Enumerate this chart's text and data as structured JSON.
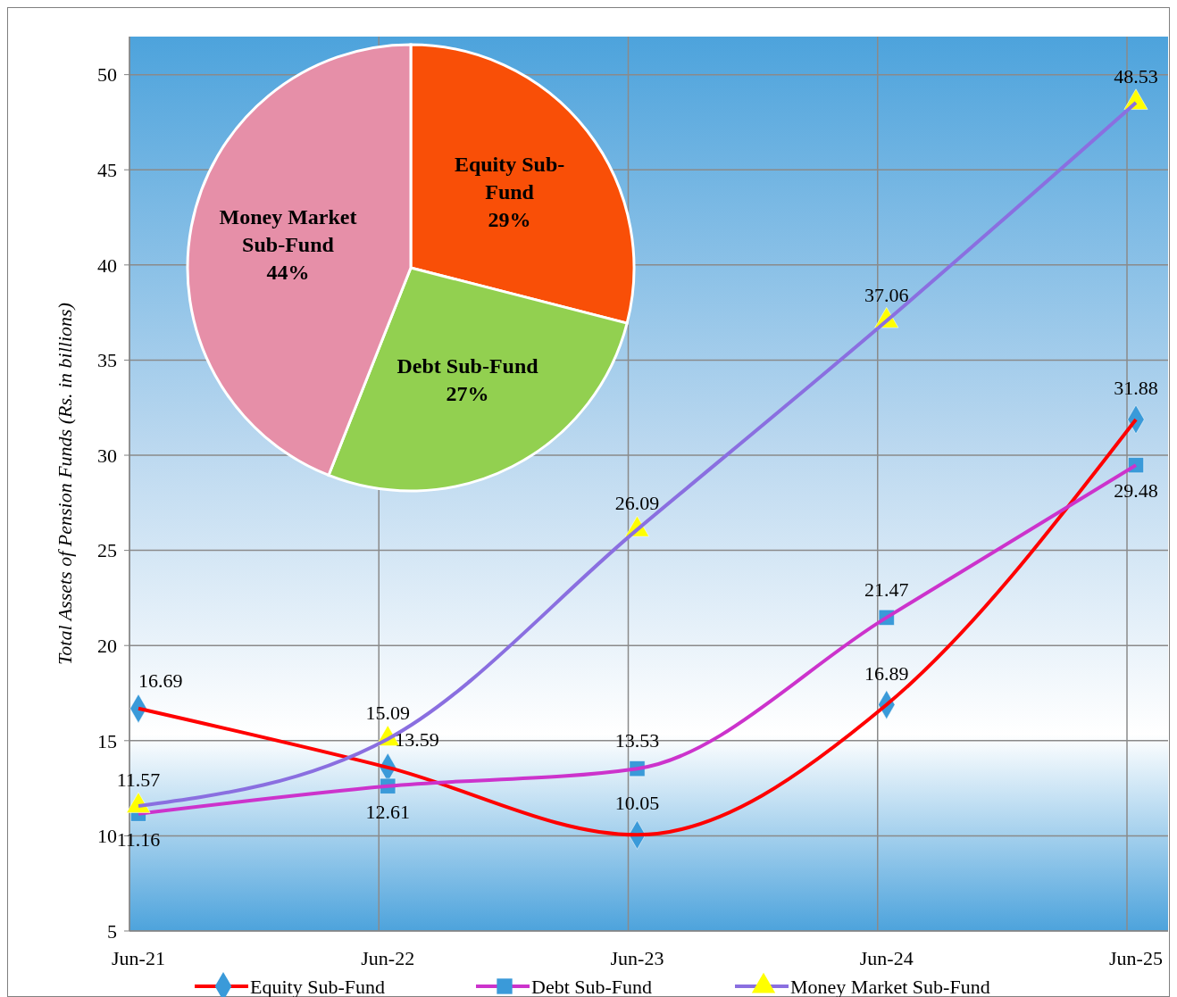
{
  "chart_data": [
    {
      "type": "line",
      "ylabel": "Total Assets  of Pension Funds (Rs. in billions)",
      "categories": [
        "Jun-21",
        "Jun-22",
        "Jun-23",
        "Jun-24",
        "Jun-25"
      ],
      "ylim": [
        5,
        52
      ],
      "yticks": [
        5,
        10,
        15,
        20,
        25,
        30,
        35,
        40,
        45,
        50
      ],
      "grid": true,
      "legend": "bottom",
      "data_labels": true,
      "series": [
        {
          "name": "Equity Sub-Fund",
          "color": "#ff0000",
          "marker": "diamond",
          "values": [
            16.69,
            13.59,
            10.05,
            16.89,
            31.88
          ]
        },
        {
          "name": "Debt Sub-Fund",
          "color": "#cc33cc",
          "marker": "square",
          "values": [
            11.16,
            12.61,
            13.53,
            21.47,
            29.48
          ]
        },
        {
          "name": "Money Market Sub-Fund",
          "color": "#8a6fe0",
          "marker": "triangle",
          "values": [
            11.57,
            15.09,
            26.09,
            37.06,
            48.53
          ]
        }
      ]
    },
    {
      "type": "pie",
      "categories": [
        "Equity Sub-Fund",
        "Debt Sub-Fund",
        "Money Market Sub-Fund"
      ],
      "values": [
        29,
        27,
        44
      ],
      "value_labels": [
        "29%",
        "27%",
        "44%"
      ],
      "colors": [
        "#f94f07",
        "#92d050",
        "#e68fa8"
      ]
    }
  ]
}
